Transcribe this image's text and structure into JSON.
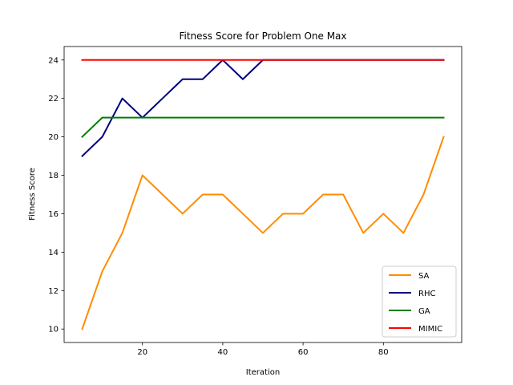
{
  "chart_data": {
    "type": "line",
    "title": "Fitness Score for Problem One Max",
    "xlabel": "Iteration",
    "ylabel": "Fitness Score",
    "xlim": [
      0.5,
      99.5
    ],
    "ylim": [
      9.3,
      24.7
    ],
    "xticks": [
      20,
      40,
      60,
      80
    ],
    "yticks": [
      10,
      12,
      14,
      16,
      18,
      20,
      22,
      24
    ],
    "grid": false,
    "legend_position": "lower-right",
    "x": [
      5,
      10,
      15,
      20,
      25,
      30,
      35,
      40,
      45,
      50,
      55,
      60,
      65,
      70,
      75,
      80,
      85,
      90,
      95
    ],
    "series": [
      {
        "name": "SA",
        "color": "#ff8c00",
        "values": [
          10,
          13,
          15,
          18,
          17,
          16,
          17,
          17,
          16,
          15,
          16,
          16,
          17,
          17,
          15,
          16,
          15,
          17,
          20
        ]
      },
      {
        "name": "RHC",
        "color": "#000080",
        "values": [
          19,
          20,
          22,
          21,
          22,
          23,
          23,
          24,
          23,
          24,
          24,
          24,
          24,
          24,
          24,
          24,
          24,
          24,
          24
        ]
      },
      {
        "name": "GA",
        "color": "#008000",
        "values": [
          20,
          21,
          21,
          21,
          21,
          21,
          21,
          21,
          21,
          21,
          21,
          21,
          21,
          21,
          21,
          21,
          21,
          21,
          21
        ]
      },
      {
        "name": "MIMIC",
        "color": "#ff0000",
        "values": [
          24,
          24,
          24,
          24,
          24,
          24,
          24,
          24,
          24,
          24,
          24,
          24,
          24,
          24,
          24,
          24,
          24,
          24,
          24
        ]
      }
    ]
  }
}
